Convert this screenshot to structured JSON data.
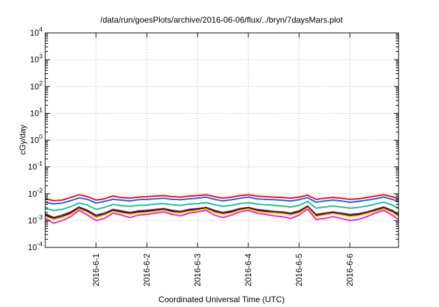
{
  "chart_data": {
    "type": "line",
    "title": "/data/run/goesPlots/archive/2016-06-06/flux/../bryn/7daysMars.plot",
    "xlabel": "Coordinated Universal Time (UTC)",
    "ylabel": "cGy/day",
    "yscale": "log",
    "ylim": [
      0.0001,
      10000
    ],
    "yticks": [
      {
        "base": "10",
        "exp": "-4"
      },
      {
        "base": "10",
        "exp": "-3"
      },
      {
        "base": "10",
        "exp": "-2"
      },
      {
        "base": "10",
        "exp": "-1"
      },
      {
        "base": "10",
        "exp": "0"
      },
      {
        "base": "10",
        "exp": "1"
      },
      {
        "base": "10",
        "exp": "2"
      },
      {
        "base": "10",
        "exp": "3"
      },
      {
        "base": "10",
        "exp": "4"
      }
    ],
    "xticks": [
      "2016-6-1",
      "2016-6-2",
      "2016-6-3",
      "2016-6-4",
      "2016-6-5",
      "2016-6-6"
    ],
    "xlim": [
      "2016-05-31 00:00",
      "2016-06-06 23:00"
    ],
    "grid": true,
    "x": [
      "2016-05-31 00:00",
      "2016-05-31 04:00",
      "2016-05-31 08:00",
      "2016-05-31 12:00",
      "2016-05-31 16:00",
      "2016-05-31 20:00",
      "2016-06-01 00:00",
      "2016-06-01 04:00",
      "2016-06-01 08:00",
      "2016-06-01 12:00",
      "2016-06-01 16:00",
      "2016-06-01 20:00",
      "2016-06-02 00:00",
      "2016-06-02 04:00",
      "2016-06-02 08:00",
      "2016-06-02 12:00",
      "2016-06-02 16:00",
      "2016-06-02 20:00",
      "2016-06-03 00:00",
      "2016-06-03 04:00",
      "2016-06-03 08:00",
      "2016-06-03 12:00",
      "2016-06-03 16:00",
      "2016-06-03 20:00",
      "2016-06-04 00:00",
      "2016-06-04 04:00",
      "2016-06-04 08:00",
      "2016-06-04 12:00",
      "2016-06-04 16:00",
      "2016-06-04 20:00",
      "2016-06-05 00:00",
      "2016-06-05 04:00",
      "2016-06-05 08:00",
      "2016-06-05 12:00",
      "2016-06-05 16:00",
      "2016-06-05 20:00",
      "2016-06-06 00:00",
      "2016-06-06 04:00",
      "2016-06-06 08:00",
      "2016-06-06 12:00",
      "2016-06-06 16:00",
      "2016-06-06 20:00",
      "2016-06-06 23:00"
    ],
    "series": [
      {
        "color": "#ff0000",
        "values": [
          0.0065,
          0.0055,
          0.0058,
          0.0072,
          0.0092,
          0.0078,
          0.0058,
          0.0065,
          0.0082,
          0.0072,
          0.0068,
          0.0075,
          0.0078,
          0.0082,
          0.0085,
          0.0078,
          0.0075,
          0.0082,
          0.0085,
          0.0092,
          0.0078,
          0.0068,
          0.0075,
          0.0085,
          0.0092,
          0.0082,
          0.0078,
          0.0075,
          0.0072,
          0.0068,
          0.0075,
          0.0088,
          0.0062,
          0.0068,
          0.0072,
          0.0068,
          0.0062,
          0.0065,
          0.0072,
          0.0082,
          0.0092,
          0.0078,
          0.0065
        ]
      },
      {
        "color": "#1f55ff",
        "values": [
          0.0048,
          0.0042,
          0.0045,
          0.0055,
          0.007,
          0.0062,
          0.0045,
          0.0052,
          0.0062,
          0.0058,
          0.0054,
          0.006,
          0.0062,
          0.0065,
          0.0068,
          0.0062,
          0.006,
          0.0065,
          0.0068,
          0.0075,
          0.0062,
          0.0054,
          0.006,
          0.0068,
          0.0075,
          0.0065,
          0.0062,
          0.006,
          0.0057,
          0.0054,
          0.006,
          0.0072,
          0.0048,
          0.0054,
          0.0058,
          0.0054,
          0.0048,
          0.0052,
          0.0058,
          0.0065,
          0.0075,
          0.0062,
          0.0052
        ]
      },
      {
        "color": "#19c08f",
        "values": [
          0.0028,
          0.0024,
          0.0026,
          0.0033,
          0.0045,
          0.0038,
          0.0026,
          0.0031,
          0.004,
          0.0036,
          0.0034,
          0.0037,
          0.0038,
          0.0041,
          0.0043,
          0.0039,
          0.0037,
          0.0041,
          0.0043,
          0.0047,
          0.0039,
          0.0034,
          0.0037,
          0.0043,
          0.0047,
          0.0041,
          0.0039,
          0.0037,
          0.0035,
          0.0032,
          0.0037,
          0.0052,
          0.0029,
          0.0032,
          0.0035,
          0.0032,
          0.0029,
          0.0031,
          0.0035,
          0.0041,
          0.0049,
          0.0038,
          0.0029
        ]
      },
      {
        "color": "#6a2080",
        "values": [
          0.0018,
          0.0013,
          0.0016,
          0.0021,
          0.0032,
          0.0024,
          0.0016,
          0.0019,
          0.0026,
          0.0023,
          0.002,
          0.0023,
          0.0024,
          0.0026,
          0.0028,
          0.0024,
          0.0022,
          0.0026,
          0.0028,
          0.0031,
          0.0024,
          0.002,
          0.0023,
          0.0028,
          0.0031,
          0.0026,
          0.0024,
          0.0022,
          0.0021,
          0.0019,
          0.0023,
          0.0035,
          0.0017,
          0.0019,
          0.0021,
          0.0019,
          0.0017,
          0.0018,
          0.0021,
          0.0026,
          0.0032,
          0.0024,
          0.0017
        ]
      },
      {
        "color": "#111111",
        "values": [
          0.0016,
          0.0012,
          0.0014,
          0.0019,
          0.0029,
          0.0022,
          0.0014,
          0.0017,
          0.0024,
          0.0021,
          0.0018,
          0.0021,
          0.0022,
          0.0024,
          0.0026,
          0.0022,
          0.002,
          0.0024,
          0.0026,
          0.0029,
          0.0022,
          0.0018,
          0.0021,
          0.0026,
          0.0029,
          0.0024,
          0.0022,
          0.002,
          0.0019,
          0.0017,
          0.0021,
          0.0032,
          0.0015,
          0.0017,
          0.0019,
          0.0017,
          0.0015,
          0.0016,
          0.0019,
          0.0024,
          0.0029,
          0.0022,
          0.0015
        ]
      },
      {
        "color": "#ffd000",
        "values": [
          0.0014,
          0.0011,
          0.0013,
          0.0017,
          0.0027,
          0.002,
          0.0013,
          0.0016,
          0.0022,
          0.0019,
          0.0017,
          0.0019,
          0.002,
          0.0022,
          0.0024,
          0.002,
          0.0019,
          0.0022,
          0.0024,
          0.0027,
          0.002,
          0.0017,
          0.0019,
          0.0024,
          0.0027,
          0.0022,
          0.002,
          0.0019,
          0.0018,
          0.0016,
          0.0019,
          0.003,
          0.0014,
          0.0016,
          0.0018,
          0.0016,
          0.0014,
          0.0015,
          0.0018,
          0.0022,
          0.0027,
          0.002,
          0.0014
        ]
      },
      {
        "color": "#ff1ad9",
        "values": [
          0.0012,
          0.0008,
          0.001,
          0.0014,
          0.0024,
          0.0016,
          0.001,
          0.0012,
          0.0019,
          0.0016,
          0.0013,
          0.0016,
          0.0017,
          0.0019,
          0.0021,
          0.0017,
          0.0015,
          0.0019,
          0.0021,
          0.0024,
          0.0016,
          0.0013,
          0.0016,
          0.0021,
          0.0024,
          0.0019,
          0.0017,
          0.0015,
          0.0014,
          0.0012,
          0.0016,
          0.0027,
          0.0011,
          0.0012,
          0.0014,
          0.0012,
          0.001,
          0.0011,
          0.0014,
          0.0019,
          0.0024,
          0.0016,
          0.0011
        ]
      }
    ]
  }
}
